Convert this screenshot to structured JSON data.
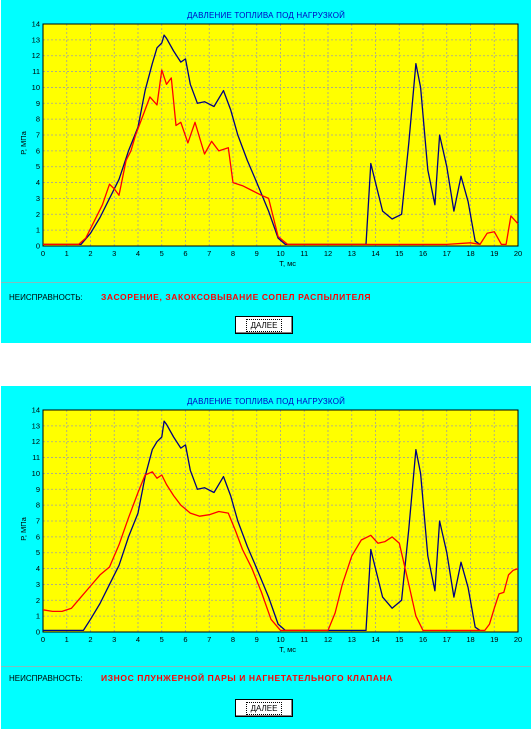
{
  "panels": [
    {
      "title": "ДАВЛЕНИЕ ТОПЛИВА ПОД НАГРУЗКОЙ",
      "fault_label": "НЕИСПРАВНОСТЬ:",
      "fault_text": "ЗАСОРЕНИЕ, ЗАКОКСОВЫВАНИЕ СОПЕЛ РАСПЫЛИТЕЛЯ",
      "next_button": "ДАЛЕЕ"
    },
    {
      "title": "ДАВЛЕНИЕ ТОПЛИВА ПОД НАГРУЗКОЙ",
      "fault_label": "НЕИСПРАВНОСТЬ:",
      "fault_text": "ИЗНОС ПЛУНЖЕРНОЙ ПАРЫ И НАГНЕТАТЕЛЬНОГО КЛАПАНА",
      "next_button": "ДАЛЕЕ"
    }
  ],
  "colors": {
    "panel_bg": "#00ffff",
    "plot_bg": "#ffff00",
    "grid": "#a0a0a0",
    "reference_line": "#000080",
    "fault_line": "#ff0000",
    "title_text": "#0000c0",
    "fault_text": "#ff0000"
  },
  "chart_data": [
    {
      "type": "line",
      "title": "ДАВЛЕНИЕ ТОПЛИВА ПОД НАГРУЗКОЙ",
      "xlabel": "Т, мс",
      "ylabel": "Р, МПа",
      "xlim": [
        0,
        20
      ],
      "ylim": [
        0,
        14
      ],
      "xticks": [
        "0",
        "1",
        "2",
        "3",
        "4",
        "5",
        "6",
        "7",
        "8",
        "9",
        "10",
        "11",
        "12",
        "13",
        "14",
        "15",
        "16",
        "17",
        "18",
        "19",
        "20"
      ],
      "yticks": [
        "0",
        "1",
        "2",
        "3",
        "4",
        "5",
        "6",
        "7",
        "8",
        "9",
        "10",
        "11",
        "12",
        "13",
        "14"
      ],
      "grid": true,
      "series": [
        {
          "color": "#000080",
          "x": [
            0,
            1.6,
            2.0,
            2.4,
            2.8,
            3.2,
            3.6,
            4.0,
            4.3,
            4.6,
            4.8,
            5.0,
            5.1,
            5.2,
            5.5,
            5.8,
            6.0,
            6.2,
            6.5,
            6.8,
            7.2,
            7.6,
            7.9,
            8.2,
            8.6,
            9.0,
            9.5,
            9.9,
            10.2,
            12.0,
            13.4,
            13.6,
            13.8,
            14.0,
            14.3,
            14.7,
            15.1,
            15.4,
            15.7,
            15.9,
            16.2,
            16.5,
            16.7,
            17.0,
            17.3,
            17.6,
            17.9,
            18.2,
            18.4
          ],
          "y": [
            0.1,
            0.1,
            0.8,
            1.8,
            3.0,
            4.2,
            6.0,
            7.5,
            9.8,
            11.5,
            12.5,
            12.8,
            13.3,
            13.1,
            12.3,
            11.6,
            11.8,
            10.2,
            9.0,
            9.1,
            8.8,
            9.8,
            8.6,
            7.0,
            5.4,
            4.0,
            2.2,
            0.5,
            0.1,
            0.1,
            0.1,
            0.1,
            5.2,
            4.0,
            2.2,
            1.7,
            2.0,
            6.5,
            11.5,
            10.0,
            4.8,
            2.6,
            7.0,
            5.0,
            2.2,
            4.4,
            2.8,
            0.3,
            0.1
          ]
        },
        {
          "color": "#ff0000",
          "x": [
            0,
            1.5,
            1.8,
            2.1,
            2.5,
            2.8,
            3.0,
            3.2,
            3.5,
            3.7,
            3.9,
            4.2,
            4.5,
            4.8,
            5.0,
            5.2,
            5.4,
            5.6,
            5.8,
            6.1,
            6.4,
            6.8,
            7.1,
            7.4,
            7.8,
            8.0,
            8.4,
            8.8,
            9.2,
            9.5,
            9.9,
            10.3,
            13.0,
            15.0,
            17.0,
            18.0,
            18.4,
            18.7,
            19.0,
            19.3,
            19.5,
            19.7,
            20.0
          ],
          "y": [
            0.1,
            0.1,
            0.5,
            1.4,
            2.6,
            3.9,
            3.6,
            3.2,
            5.4,
            6.0,
            7.0,
            8.2,
            9.4,
            8.9,
            11.1,
            10.2,
            10.6,
            7.6,
            7.8,
            6.5,
            7.8,
            5.8,
            6.6,
            6.0,
            6.2,
            4.0,
            3.8,
            3.5,
            3.2,
            3.0,
            0.6,
            0.1,
            0.1,
            0.1,
            0.1,
            0.2,
            0.1,
            0.8,
            0.9,
            0.1,
            0.1,
            1.9,
            1.4
          ]
        }
      ]
    },
    {
      "type": "line",
      "title": "ДАВЛЕНИЕ ТОПЛИВА ПОД НАГРУЗКОЙ",
      "xlabel": "Т, мс",
      "ylabel": "Р, МПа",
      "xlim": [
        0,
        20
      ],
      "ylim": [
        0,
        14
      ],
      "xticks": [
        "0",
        "1",
        "2",
        "3",
        "4",
        "5",
        "6",
        "7",
        "8",
        "9",
        "10",
        "11",
        "12",
        "13",
        "14",
        "15",
        "16",
        "17",
        "18",
        "19",
        "20"
      ],
      "yticks": [
        "0",
        "1",
        "2",
        "3",
        "4",
        "5",
        "6",
        "7",
        "8",
        "9",
        "10",
        "11",
        "12",
        "13",
        "14"
      ],
      "grid": true,
      "series": [
        {
          "color": "#000080",
          "x": [
            0,
            1.7,
            2.0,
            2.4,
            2.8,
            3.2,
            3.6,
            4.0,
            4.3,
            4.6,
            4.8,
            5.0,
            5.1,
            5.2,
            5.5,
            5.8,
            6.0,
            6.2,
            6.5,
            6.8,
            7.2,
            7.6,
            7.9,
            8.2,
            8.6,
            9.0,
            9.5,
            9.9,
            10.2,
            12.0,
            13.4,
            13.6,
            13.8,
            14.0,
            14.3,
            14.7,
            15.1,
            15.4,
            15.7,
            15.9,
            16.2,
            16.5,
            16.7,
            17.0,
            17.3,
            17.6,
            17.9,
            18.2,
            18.4
          ],
          "y": [
            0.1,
            0.1,
            0.8,
            1.8,
            3.0,
            4.2,
            6.0,
            7.5,
            9.8,
            11.5,
            12.0,
            12.3,
            13.3,
            13.1,
            12.3,
            11.6,
            11.8,
            10.2,
            9.0,
            9.1,
            8.8,
            9.8,
            8.6,
            7.0,
            5.4,
            4.0,
            2.2,
            0.5,
            0.1,
            0.1,
            0.1,
            0.1,
            5.2,
            4.0,
            2.2,
            1.5,
            2.0,
            6.5,
            11.5,
            10.0,
            4.8,
            2.6,
            7.0,
            5.0,
            2.2,
            4.4,
            2.8,
            0.3,
            0.1
          ]
        },
        {
          "color": "#ff0000",
          "x": [
            0,
            0.4,
            0.8,
            1.2,
            1.6,
            2.0,
            2.4,
            2.8,
            3.2,
            3.6,
            4.0,
            4.3,
            4.6,
            4.8,
            5.0,
            5.2,
            5.5,
            5.8,
            6.2,
            6.6,
            7.0,
            7.4,
            7.8,
            8.1,
            8.4,
            8.8,
            9.2,
            9.6,
            10.0,
            12.0,
            12.3,
            12.6,
            13.0,
            13.4,
            13.8,
            14.1,
            14.4,
            14.7,
            15.0,
            15.4,
            15.7,
            16.0,
            18.6,
            18.8,
            19.0,
            19.2,
            19.4,
            19.6,
            19.8,
            20.0
          ],
          "y": [
            1.4,
            1.3,
            1.3,
            1.5,
            2.2,
            2.9,
            3.6,
            4.1,
            5.5,
            7.2,
            8.8,
            9.9,
            10.1,
            9.7,
            9.9,
            9.3,
            8.6,
            8.0,
            7.5,
            7.3,
            7.4,
            7.6,
            7.5,
            6.4,
            5.2,
            4.0,
            2.5,
            0.8,
            0.1,
            0.1,
            1.2,
            3.0,
            4.8,
            5.8,
            6.1,
            5.6,
            5.7,
            6.0,
            5.6,
            3.0,
            1.0,
            0.1,
            0.1,
            0.5,
            1.5,
            2.4,
            2.5,
            3.6,
            3.9,
            4.0
          ]
        }
      ]
    }
  ]
}
